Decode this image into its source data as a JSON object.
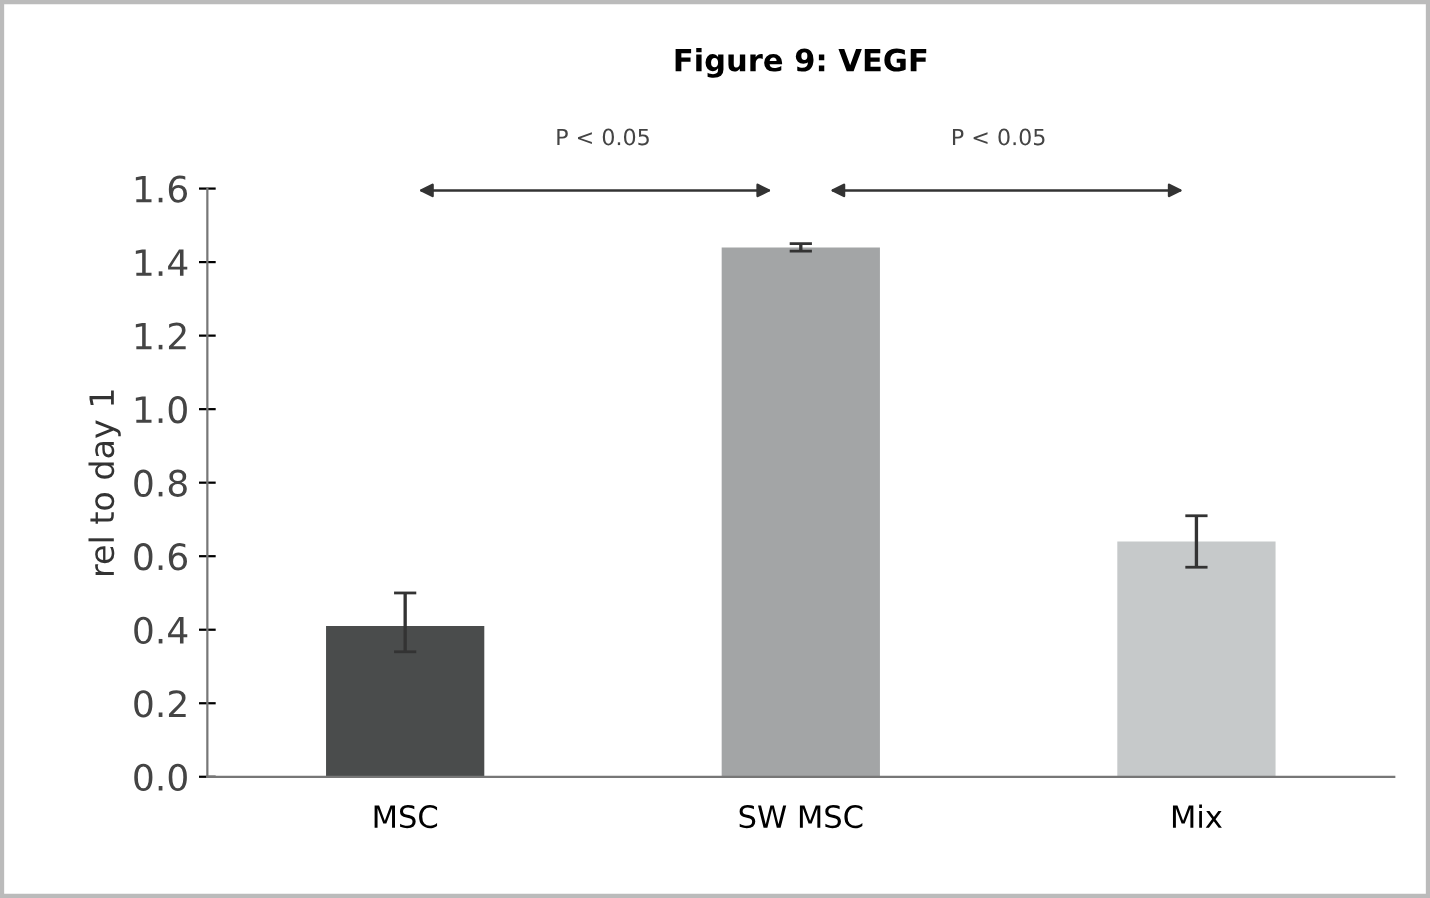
{
  "chart_data": {
    "type": "bar",
    "title": "Figure 9: VEGF",
    "ylabel": "rel to day 1",
    "categories": [
      "MSC",
      "SW MSC",
      "Mix"
    ],
    "values": [
      0.41,
      1.44,
      0.64
    ],
    "colors": [
      "#4a4c4c",
      "#a3a5a6",
      "#c6c9ca"
    ],
    "errors": [
      [
        0.34,
        0.5
      ],
      0.01,
      [
        0.57,
        0.71
      ]
    ],
    "ylim": [
      0,
      1.6
    ],
    "yticks": [
      {
        "value": 0,
        "label": "0.0"
      },
      {
        "value": 0.2,
        "label": "0.2"
      },
      {
        "value": 0.4,
        "label": "0.4"
      },
      {
        "value": 0.6,
        "label": "0.6"
      },
      {
        "value": 0.8,
        "label": "0.8"
      },
      {
        "value": 1.0,
        "label": "1.0"
      },
      {
        "value": 1.2,
        "label": "1.2"
      },
      {
        "value": 1.4,
        "label": "1.4"
      },
      {
        "value": 1.6,
        "label": "1.6"
      }
    ],
    "annotations": [
      "P < 0.05",
      "P < 0.05"
    ],
    "grid": false,
    "legend": false
  }
}
